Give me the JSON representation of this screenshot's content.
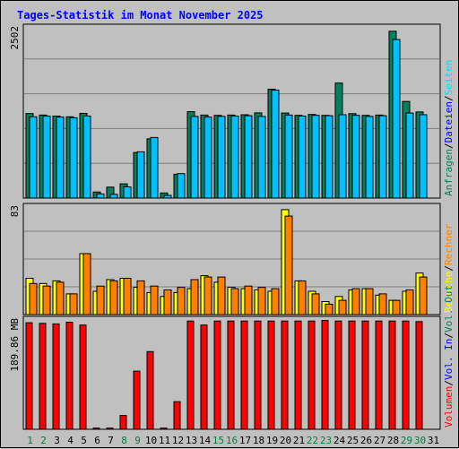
{
  "title": "Tages-Statistik im Monat November 2025",
  "colors": {
    "title": "#0000ff",
    "background": "#c0c0c0",
    "plot_bg": "#c0c0c0",
    "gridline": "#808080",
    "anfragen": "#00805c",
    "dateien": "#00c0ff",
    "seiten": "#00e0ff",
    "besuche": "#ffff00",
    "rechner": "#ff8000",
    "volumen": "#ff0000",
    "weekday": "#000000",
    "weekend": "#008040"
  },
  "chart_data": [
    {
      "type": "bar",
      "panel": "top",
      "ymax_label": "2502",
      "ylim": [
        0,
        2502
      ],
      "grid": true,
      "right_legend": [
        {
          "text": "Anfragen",
          "color": "#00805c"
        },
        {
          "text": "/",
          "color": "#000000"
        },
        {
          "text": "Dateien",
          "color": "#0000ff"
        },
        {
          "text": "/",
          "color": "#000000"
        },
        {
          "text": "Seiten",
          "color": "#00e0ff"
        }
      ],
      "series": [
        {
          "name": "Anfragen",
          "color": "#00805c",
          "values": [
            1242,
            1220,
            1205,
            1195,
            1245,
            90,
            160,
            210,
            670,
            870,
            75,
            350,
            1270,
            1220,
            1215,
            1220,
            1225,
            1252,
            1600,
            1250,
            1215,
            1228,
            1215,
            1690,
            1240,
            1215,
            1220,
            2450,
            1420,
            1265
          ]
        },
        {
          "name": "Dateien",
          "color": "#00c0ff",
          "values": [
            1195,
            1205,
            1190,
            1180,
            1205,
            60,
            55,
            165,
            680,
            890,
            40,
            360,
            1200,
            1190,
            1200,
            1205,
            1210,
            1200,
            1585,
            1220,
            1205,
            1215,
            1210,
            1225,
            1215,
            1200,
            1210,
            2330,
            1250,
            1225
          ]
        }
      ]
    },
    {
      "type": "bar",
      "panel": "middle",
      "ymax_label": "83",
      "ylim": [
        0,
        83
      ],
      "grid": true,
      "right_legend": [
        {
          "text": "Besuche",
          "color": "#ffff00"
        },
        {
          "text": "/",
          "color": "#000000"
        },
        {
          "text": "Rechner",
          "color": "#ff8000"
        }
      ],
      "series": [
        {
          "name": "Besuche",
          "color": "#ffff00",
          "values": [
            28,
            24,
            26,
            16,
            47,
            18,
            27,
            28,
            21,
            17,
            14,
            17,
            20,
            30,
            25,
            21,
            20,
            19,
            18,
            81,
            26,
            18,
            10,
            14,
            19,
            20,
            15,
            11,
            18,
            32
          ]
        },
        {
          "name": "Rechner",
          "color": "#ff8000",
          "values": [
            24,
            22,
            25,
            16,
            47,
            22,
            26,
            28,
            26,
            22,
            19,
            21,
            27,
            29,
            29,
            20,
            22,
            21,
            20,
            76,
            26,
            16,
            8,
            11,
            20,
            20,
            16,
            11,
            19,
            29
          ]
        }
      ]
    },
    {
      "type": "bar",
      "panel": "bottom",
      "ymax_label": "189.86 MB",
      "ylim": [
        0,
        189.86
      ],
      "grid": false,
      "right_legend": [
        {
          "text": "Volumen",
          "color": "#ff0000"
        },
        {
          "text": "/",
          "color": "#000000"
        },
        {
          "text": "Vol. In",
          "color": "#0000ff"
        },
        {
          "text": "/",
          "color": "#000000"
        },
        {
          "text": "Vol. Out",
          "color": "#00805c"
        }
      ],
      "series": [
        {
          "name": "Volumen",
          "color": "#ff0000",
          "values": [
            185,
            184,
            183,
            186,
            181,
            2,
            2,
            24,
            101,
            135,
            2,
            48,
            188,
            181,
            188,
            188,
            188,
            188,
            188,
            188,
            188,
            188,
            189,
            188,
            188,
            188,
            188,
            188,
            188,
            187
          ]
        }
      ]
    }
  ],
  "x_axis": {
    "labels": [
      "1",
      "2",
      "3",
      "4",
      "5",
      "6",
      "7",
      "8",
      "9",
      "10",
      "11",
      "12",
      "13",
      "14",
      "15",
      "16",
      "17",
      "18",
      "19",
      "20",
      "21",
      "22",
      "23",
      "24",
      "25",
      "26",
      "27",
      "28",
      "29",
      "30",
      "31"
    ],
    "weekend": [
      "1",
      "2",
      "8",
      "9",
      "15",
      "16",
      "22",
      "23",
      "29",
      "30"
    ]
  }
}
